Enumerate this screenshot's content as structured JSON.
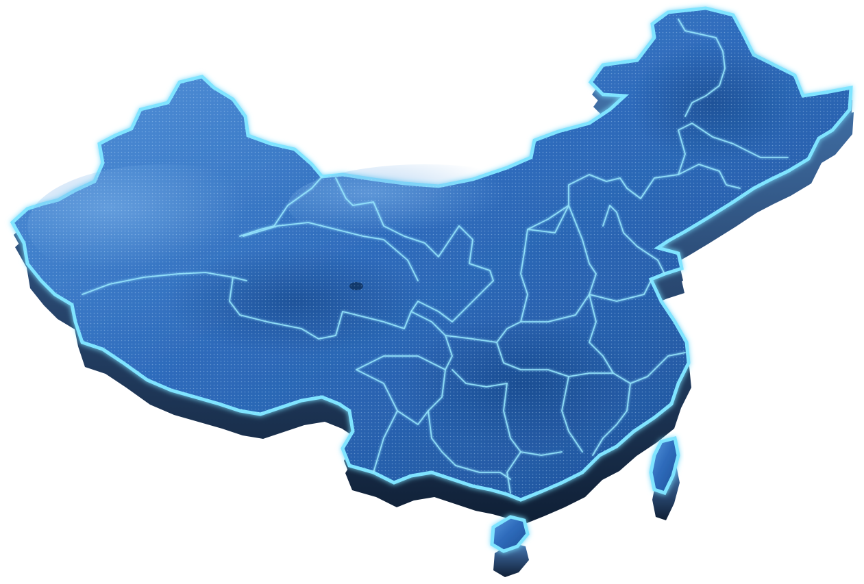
{
  "map": {
    "style": "3d-extruded-glow",
    "colors": {
      "background": "#ffffff",
      "land_light": "#4e8fd6",
      "land_mid": "#2f6cbc",
      "land_dark": "#1d4f96",
      "extrusion_top": "#3b6ea8",
      "extrusion_bottom": "#1a2f4a",
      "outer_glow": "#7fe4ff",
      "border_line": "#a8f0ff",
      "province_line": "#8ee8ff"
    },
    "regions": [
      {
        "id": "mainland",
        "kind": "mainland"
      },
      {
        "id": "hainan",
        "kind": "island"
      },
      {
        "id": "taiwan",
        "kind": "island"
      }
    ]
  }
}
